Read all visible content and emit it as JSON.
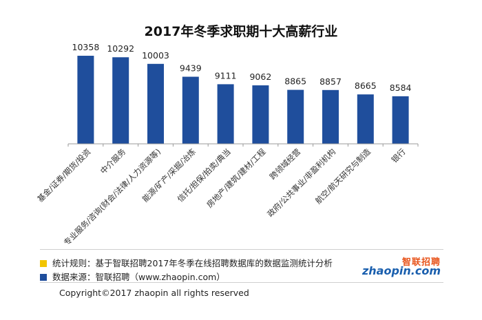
{
  "chart_data": {
    "type": "bar",
    "title": "2017年冬季求职期十大高薪行业",
    "categories": [
      "基金/证券/期货/投资",
      "中介服务",
      "专业服务/咨询(财会/法律/人力资源等)",
      "能源/矿产/采掘/冶炼",
      "信托/担保/拍卖/典当",
      "房地产/建筑/建材/工程",
      "跨领域经营",
      "政府/公共事业/非盈利机构",
      "航空/航天研究与制造",
      "银行"
    ],
    "values": [
      10358,
      10292,
      10003,
      9439,
      9111,
      9062,
      8865,
      8857,
      8665,
      8584
    ],
    "value_labels": [
      "10358",
      "10292",
      "10003",
      "9439",
      "9111",
      "9062",
      "8865",
      "8857",
      "8665",
      "8584"
    ],
    "ylim": [
      6500,
      10600
    ],
    "bar_color": "#1f4e9c",
    "grid": false
  },
  "footer": {
    "rule_text": "统计规则：基于智联招聘2017年冬季在线招聘数据库的数据监测统计分析",
    "source_text": "数据来源：智联招聘（www.zhaopin.com）",
    "copyright": "Copyright©2017 zhaopin all rights reserved",
    "rule_color": "#f2c500",
    "source_color": "#1f4e9c"
  },
  "logo": {
    "cn": "智联招聘",
    "en": "zhaopin.com"
  }
}
